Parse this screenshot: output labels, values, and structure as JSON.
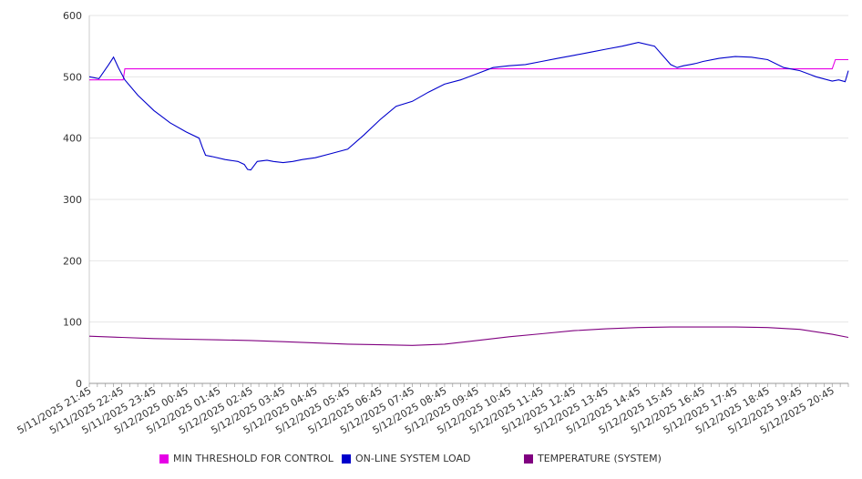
{
  "chart_data": {
    "type": "line",
    "title": "",
    "xlabel": "",
    "ylabel": "",
    "ylim": [
      0,
      600
    ],
    "yticks": [
      0,
      100,
      200,
      300,
      400,
      500,
      600
    ],
    "grid": true,
    "legend_position": "bottom",
    "xtick_labels": [
      "5/11/2025 21:45",
      "5/11/2025 22:45",
      "5/11/2025 23:45",
      "5/12/2025 00:45",
      "5/12/2025 01:45",
      "5/12/2025 02:45",
      "5/12/2025 03:45",
      "5/12/2025 04:45",
      "5/12/2025 05:45",
      "5/12/2025 06:45",
      "5/12/2025 07:45",
      "5/12/2025 08:45",
      "5/12/2025 09:45",
      "5/12/2025 10:45",
      "5/12/2025 11:45",
      "5/12/2025 12:45",
      "5/12/2025 13:45",
      "5/12/2025 14:45",
      "5/12/2025 15:45",
      "5/12/2025 16:45",
      "5/12/2025 17:45",
      "5/12/2025 18:45",
      "5/12/2025 19:45",
      "5/12/2025 20:45"
    ],
    "x_hours": [
      0,
      0.5,
      1,
      1.25,
      1.5,
      2,
      2.5,
      3,
      3.5,
      4,
      4.5,
      5,
      5.5,
      6,
      6.5,
      7,
      7.5,
      8,
      8.5,
      9,
      9.5,
      10,
      10.5,
      11,
      11.5,
      12,
      12.5,
      13,
      13.5,
      14,
      14.5,
      15,
      15.5,
      16,
      16.5,
      17,
      17.5,
      18,
      18.5,
      19,
      19.5,
      20,
      20.5,
      21,
      21.5,
      22,
      22.5,
      23,
      23.5,
      24
    ],
    "series": [
      {
        "name": "MIN THRESHOLD FOR CONTROL",
        "color": "#e600e6",
        "x": [
          0,
          1.05,
          1.1,
          23.0,
          23.1,
          23.5
        ],
        "values": [
          495,
          495,
          513,
          513,
          528,
          528
        ]
      },
      {
        "name": "ON-LINE SYSTEM LOAD",
        "color": "#0000cc",
        "x": [
          0,
          0.3,
          0.6,
          0.75,
          0.9,
          1.1,
          1.5,
          2.0,
          2.5,
          3.0,
          3.4,
          3.5,
          3.6,
          3.8,
          4.2,
          4.6,
          4.8,
          4.9,
          5.0,
          5.2,
          5.5,
          5.7,
          6.0,
          6.3,
          6.6,
          7.0,
          7.5,
          8.0,
          8.5,
          9.0,
          9.5,
          10.0,
          10.5,
          11.0,
          11.5,
          12.0,
          12.5,
          13.0,
          13.5,
          14.0,
          14.5,
          15.0,
          15.5,
          16.0,
          16.5,
          17.0,
          17.5,
          18.0,
          18.2,
          18.4,
          18.6,
          18.8,
          19.0,
          19.5,
          20.0,
          20.5,
          21.0,
          21.5,
          22.0,
          22.5,
          23.0,
          23.2,
          23.4,
          23.5
        ],
        "values": [
          500,
          497,
          520,
          532,
          515,
          495,
          470,
          445,
          425,
          410,
          400,
          385,
          372,
          370,
          365,
          362,
          357,
          349,
          348,
          362,
          364,
          362,
          360,
          362,
          365,
          368,
          375,
          382,
          405,
          430,
          452,
          460,
          475,
          488,
          495,
          505,
          515,
          518,
          520,
          525,
          530,
          535,
          540,
          545,
          550,
          556,
          550,
          520,
          515,
          518,
          520,
          522,
          525,
          530,
          533,
          532,
          528,
          515,
          510,
          500,
          493,
          495,
          492,
          510
        ]
      },
      {
        "name": "TEMPERATURE (SYSTEM)",
        "color": "#800080",
        "x": [
          0,
          1,
          2,
          3,
          4,
          5,
          6,
          7,
          8,
          9,
          10,
          11,
          12,
          13,
          14,
          15,
          16,
          17,
          18,
          19,
          20,
          21,
          22,
          23,
          23.5
        ],
        "values": [
          77,
          75,
          73,
          72,
          71,
          70,
          68,
          66,
          64,
          63,
          62,
          64,
          70,
          76,
          81,
          86,
          89,
          91,
          92,
          92,
          92,
          91,
          88,
          80,
          75
        ]
      }
    ]
  }
}
